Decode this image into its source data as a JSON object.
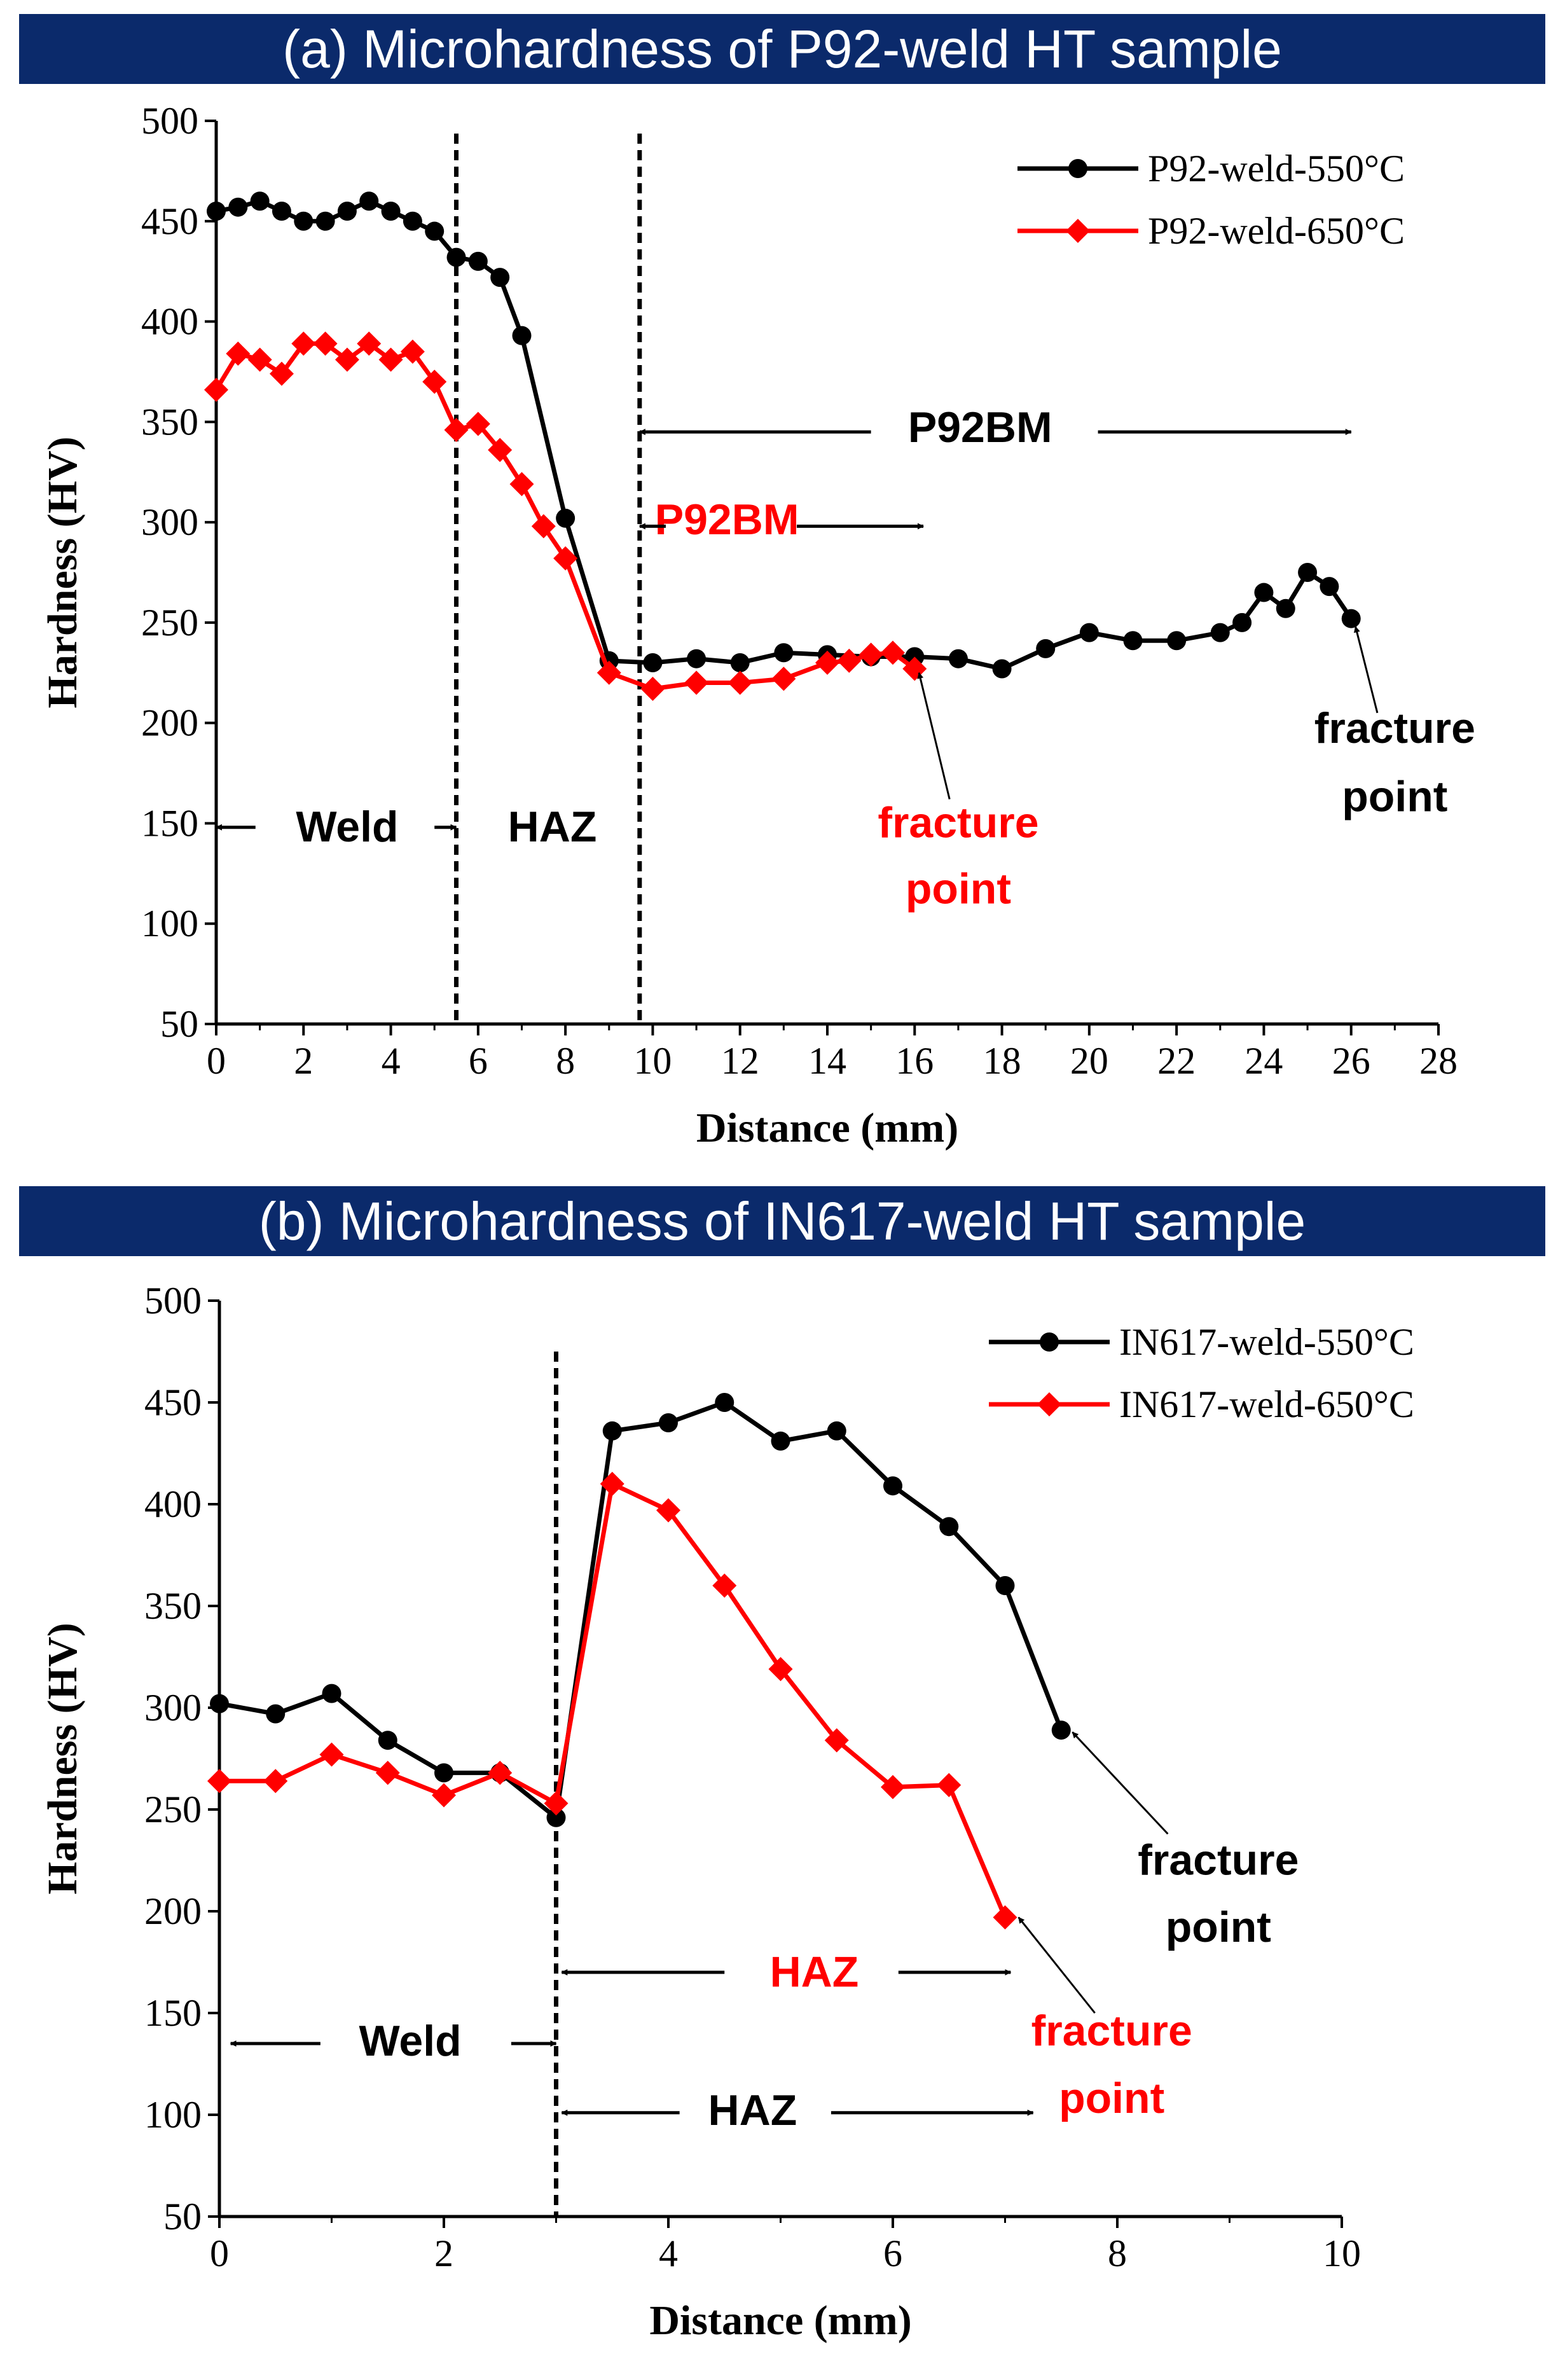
{
  "banners": {
    "a": "(a) Microhardness of P92-weld HT  sample",
    "b": "(b) Microhardness of IN617-weld HT sample"
  },
  "colors": {
    "banner_bg": "#0b2a6b",
    "black_series": "#000000",
    "red_series": "#ff0000"
  },
  "chart_data": [
    {
      "type": "line",
      "title": "(a) Microhardness of P92-weld HT  sample",
      "xlabel": "Distance (mm)",
      "ylabel": "Hardness (HV)",
      "xlim": [
        0,
        28
      ],
      "ylim": [
        50,
        500
      ],
      "xticks": [
        0,
        2,
        4,
        6,
        8,
        10,
        12,
        14,
        16,
        18,
        20,
        22,
        24,
        26,
        28
      ],
      "yticks": [
        50,
        100,
        150,
        200,
        250,
        300,
        350,
        400,
        450,
        500
      ],
      "legend_position": "top-right",
      "series": [
        {
          "name": "P92-weld-550°C",
          "color": "#000000",
          "marker": "circle",
          "x": [
            0,
            0.5,
            1,
            1.5,
            2,
            2.5,
            3,
            3.5,
            4,
            4.5,
            5,
            5.5,
            6,
            6.5,
            7,
            8,
            9,
            10,
            11,
            12,
            13,
            14,
            15,
            16,
            17,
            18,
            19,
            20,
            21,
            22,
            23,
            23.5,
            24,
            24.5,
            25,
            25.5,
            26
          ],
          "y": [
            455,
            457,
            460,
            455,
            450,
            450,
            455,
            460,
            455,
            450,
            445,
            432,
            430,
            422,
            393,
            302,
            231,
            230,
            232,
            230,
            235,
            234,
            233,
            233,
            232,
            227,
            237,
            245,
            241,
            241,
            245,
            250,
            265,
            257,
            275,
            268,
            252
          ]
        },
        {
          "name": "P92-weld-650°C",
          "color": "#ff0000",
          "marker": "diamond",
          "x": [
            0,
            0.5,
            1,
            1.5,
            2,
            2.5,
            3,
            3.5,
            4,
            4.5,
            5,
            5.5,
            6,
            6.5,
            7,
            7.5,
            8,
            9,
            10,
            11,
            12,
            13,
            14,
            14.5,
            15,
            15.5,
            16
          ],
          "y": [
            366,
            384,
            381,
            374,
            389,
            389,
            381,
            389,
            381,
            385,
            370,
            346,
            349,
            336,
            319,
            298,
            282,
            225,
            217,
            220,
            220,
            222,
            230,
            231,
            234,
            235,
            227
          ]
        }
      ],
      "annotations": {
        "weld": "Weld",
        "haz": "HAZ",
        "bm_black": "P92BM",
        "bm_red": "P92BM",
        "fracture_black": [
          "fracture",
          "point"
        ],
        "fracture_red": [
          "fracture",
          "point"
        ]
      },
      "vlines": [
        5.5,
        9.7
      ]
    },
    {
      "type": "line",
      "title": "(b) Microhardness of IN617-weld HT sample",
      "xlabel": "Distance (mm)",
      "ylabel": "Hardness (HV)",
      "xlim": [
        0,
        10
      ],
      "ylim": [
        50,
        500
      ],
      "xticks": [
        0,
        2,
        4,
        6,
        8,
        10
      ],
      "yticks": [
        50,
        100,
        150,
        200,
        250,
        300,
        350,
        400,
        450,
        500
      ],
      "legend_position": "top-right",
      "series": [
        {
          "name": "IN617-weld-550°C",
          "color": "#000000",
          "marker": "circle",
          "x": [
            0,
            0.5,
            1,
            1.5,
            2,
            2.5,
            3,
            3.5,
            4,
            4.5,
            5,
            5.5,
            6,
            6.5,
            7,
            7.5
          ],
          "y": [
            302,
            297,
            307,
            284,
            268,
            268,
            246,
            436,
            440,
            450,
            431,
            436,
            409,
            389,
            360,
            289
          ]
        },
        {
          "name": "IN617-weld-650°C",
          "color": "#ff0000",
          "marker": "diamond",
          "x": [
            0,
            0.5,
            1,
            1.5,
            2,
            2.5,
            3,
            3.5,
            4,
            4.5,
            5,
            5.5,
            6,
            6.5,
            7
          ],
          "y": [
            264,
            264,
            277,
            268,
            257,
            268,
            253,
            410,
            397,
            360,
            319,
            284,
            261,
            262,
            197
          ]
        }
      ],
      "annotations": {
        "weld": "Weld",
        "haz_red": "HAZ",
        "haz_black": "HAZ",
        "fracture_black": [
          "fracture",
          "point"
        ],
        "fracture_red": [
          "fracture",
          "point"
        ]
      },
      "vlines": [
        3.0
      ]
    }
  ]
}
